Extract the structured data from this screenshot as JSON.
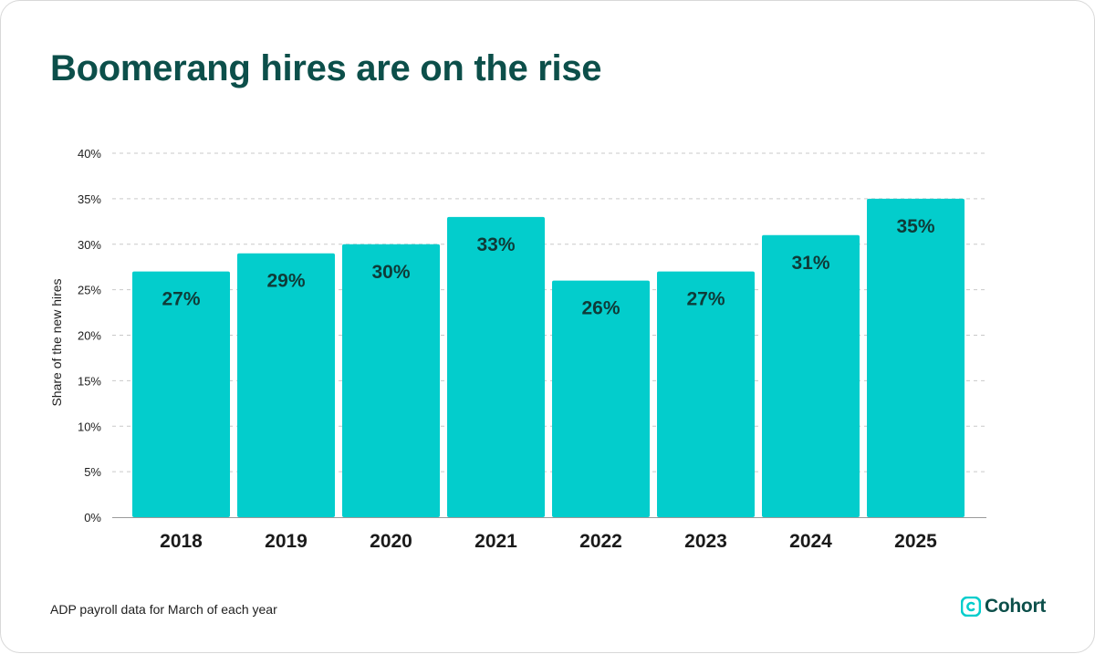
{
  "header": {
    "title": "Boomerang hires are on the rise"
  },
  "footer": {
    "source_note": "ADP payroll data for March of each year",
    "brand_name": "Cohort",
    "brand_icon": "cohort-logo-icon"
  },
  "colors": {
    "bar": "#03cdcc",
    "title": "#0c4f4a",
    "label": "#0f3b38",
    "grid": "#c9c9c9",
    "axis_text": "#1d1d1d"
  },
  "chart_data": {
    "type": "bar",
    "title": "Boomerang hires are on the rise",
    "xlabel": "",
    "ylabel": "Share of the new hires",
    "categories": [
      "2018",
      "2019",
      "2020",
      "2021",
      "2022",
      "2023",
      "2024",
      "2025"
    ],
    "values": [
      27,
      29,
      30,
      33,
      26,
      27,
      31,
      35
    ],
    "value_labels": [
      "27%",
      "29%",
      "30%",
      "33%",
      "26%",
      "27%",
      "31%",
      "35%"
    ],
    "ylim": [
      0,
      40
    ],
    "yticks": [
      0,
      5,
      10,
      15,
      20,
      25,
      30,
      35,
      40
    ],
    "ytick_labels": [
      "0%",
      "5%",
      "10%",
      "15%",
      "20%",
      "25%",
      "30%",
      "35%",
      "40%"
    ],
    "grid": true,
    "legend": "none"
  }
}
